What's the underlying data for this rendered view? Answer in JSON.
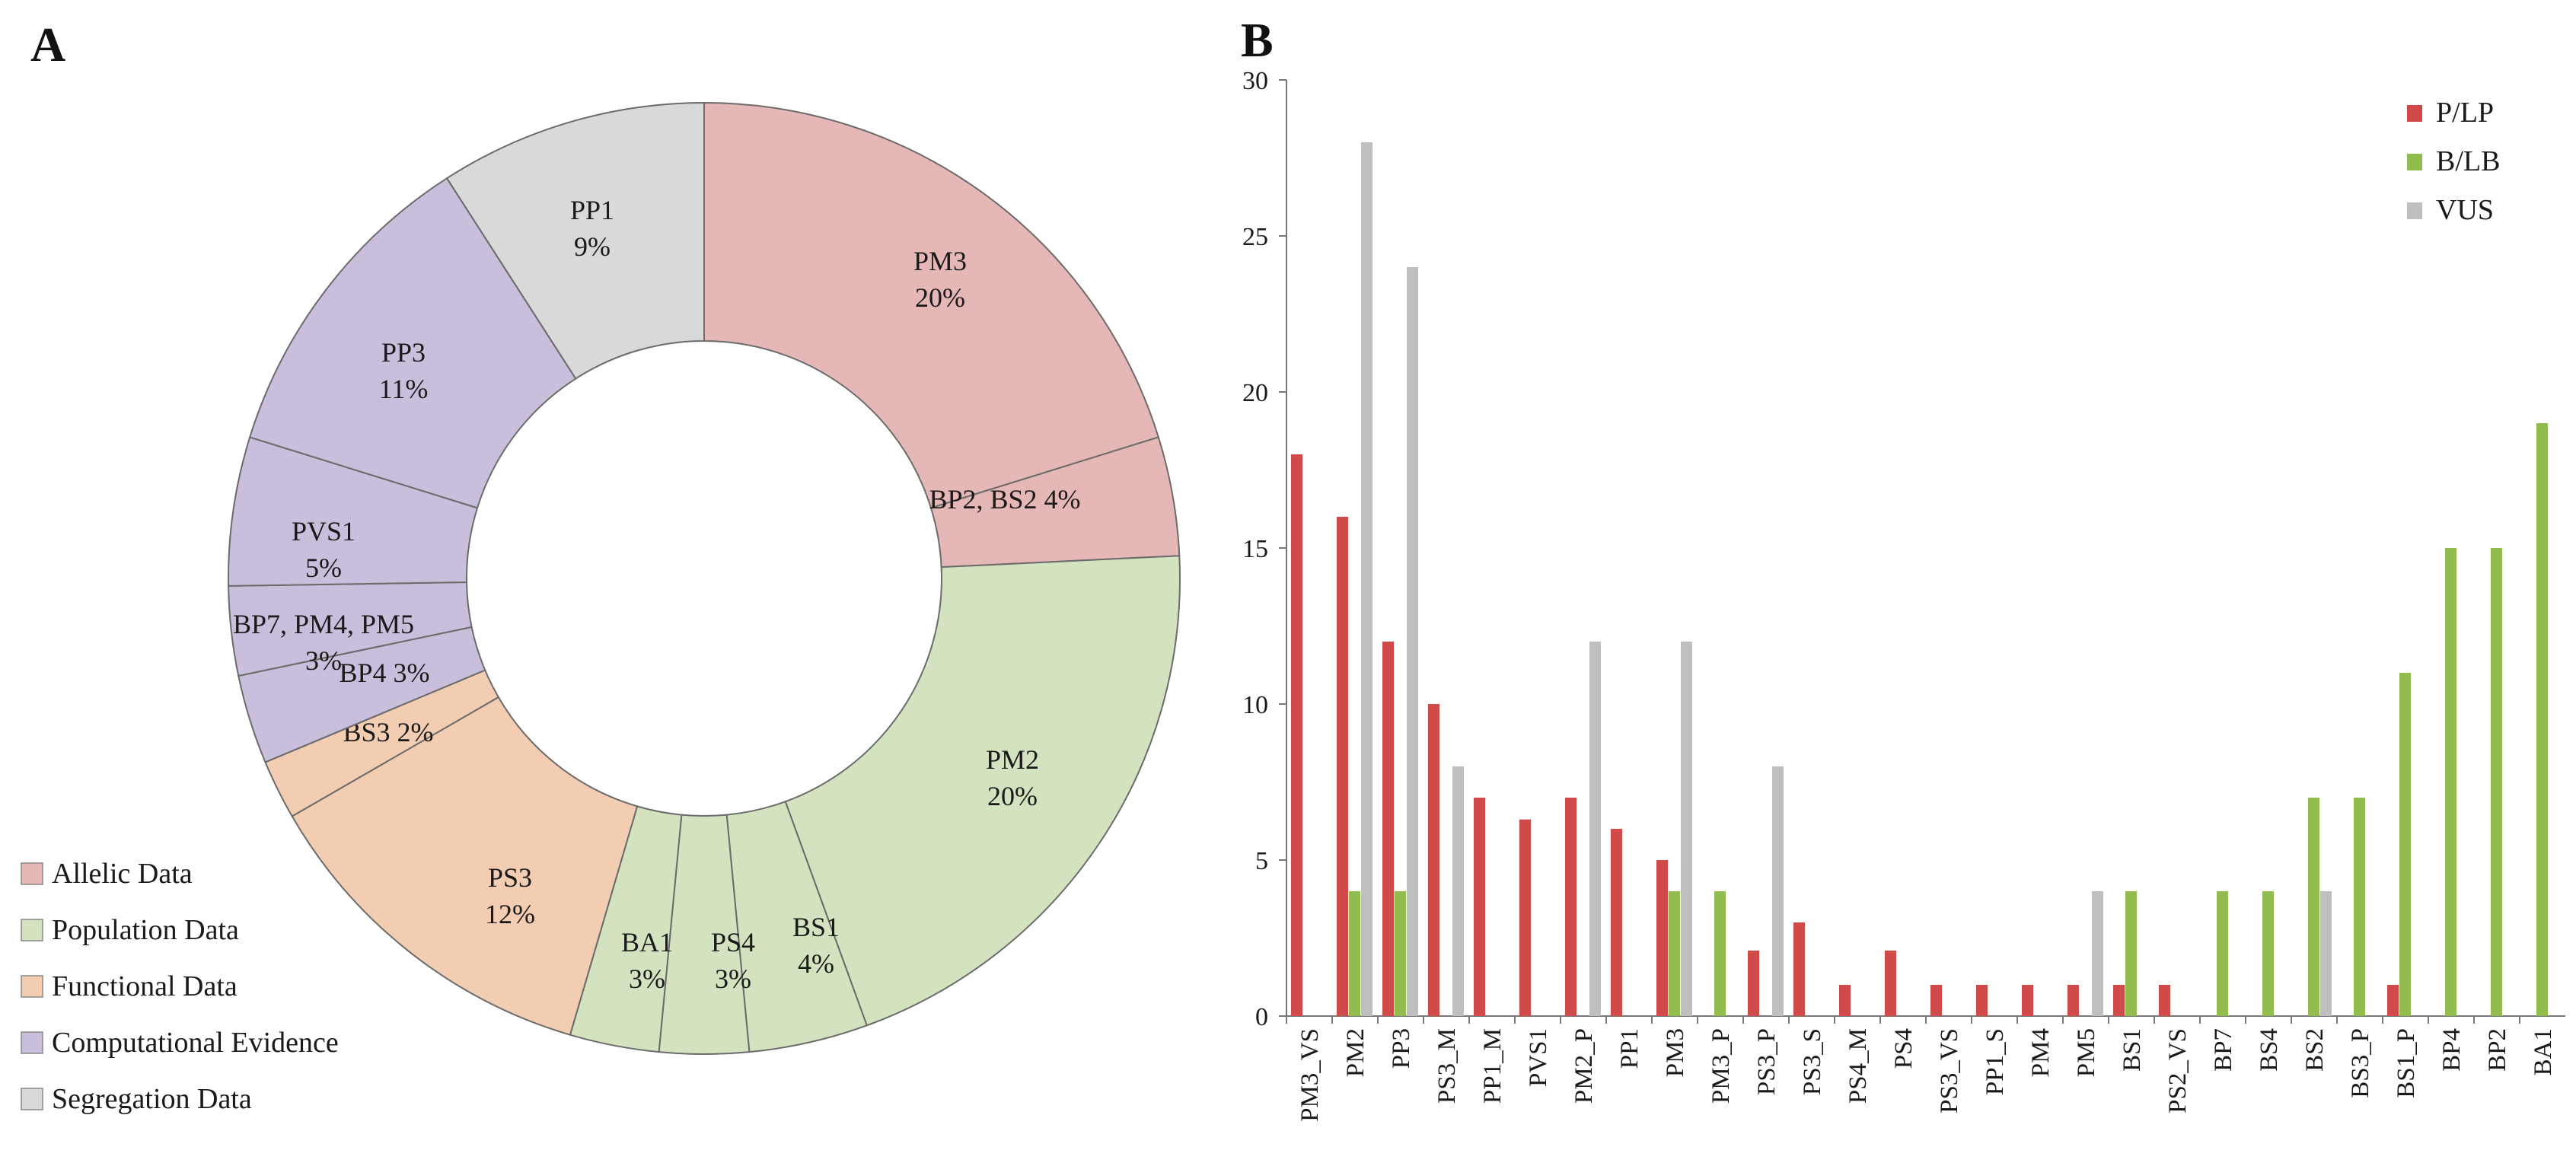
{
  "panels": {
    "a": "A",
    "b": "B"
  },
  "chart_data": [
    {
      "type": "pie",
      "variant": "donut",
      "panel": "A",
      "title": "",
      "slices": [
        {
          "label": "PM3",
          "value": 20,
          "pct": "20%",
          "category": "allelic"
        },
        {
          "label": "BP2, BS2",
          "value": 4,
          "pct": "4%",
          "category": "allelic"
        },
        {
          "label": "PM2",
          "value": 20,
          "pct": "20%",
          "category": "population"
        },
        {
          "label": "BS1",
          "value": 4,
          "pct": "4%",
          "category": "population"
        },
        {
          "label": "PS4",
          "value": 3,
          "pct": "3%",
          "category": "population"
        },
        {
          "label": "BA1",
          "value": 3,
          "pct": "3%",
          "category": "population"
        },
        {
          "label": "PS3",
          "value": 12,
          "pct": "12%",
          "category": "functional"
        },
        {
          "label": "BS3",
          "value": 2,
          "pct": "2%",
          "category": "functional"
        },
        {
          "label": "BP4",
          "value": 3,
          "pct": "3%",
          "category": "computational"
        },
        {
          "label": "BP7, PM4, PM5",
          "value": 3,
          "pct": "3%",
          "category": "computational"
        },
        {
          "label": "PVS1",
          "value": 5,
          "pct": "5%",
          "category": "computational"
        },
        {
          "label": "PP3",
          "value": 11,
          "pct": "11%",
          "category": "computational"
        },
        {
          "label": "PP1",
          "value": 9,
          "pct": "9%",
          "category": "segregation"
        }
      ],
      "categories": [
        {
          "key": "allelic",
          "name": "Allelic Data",
          "color": "#e6b7b7"
        },
        {
          "key": "population",
          "name": "Population Data",
          "color": "#d4e3bf"
        },
        {
          "key": "functional",
          "name": "Functional Data",
          "color": "#f2cdb1"
        },
        {
          "key": "computational",
          "name": "Computational Evidence",
          "color": "#c9bedc"
        },
        {
          "key": "segregation",
          "name": "Segregation Data",
          "color": "#d9d9d9"
        }
      ],
      "legend_position": "bottom-left"
    },
    {
      "type": "bar",
      "panel": "B",
      "title": "",
      "xlabel": "",
      "ylabel": "",
      "ylim": [
        0,
        30
      ],
      "yticks": [
        0,
        5,
        10,
        15,
        20,
        25,
        30
      ],
      "grid": false,
      "legend_position": "top-right",
      "categories": [
        "PM3_VS",
        "PM2",
        "PP3",
        "PS3_M",
        "PP1_M",
        "PVS1",
        "PM2_P",
        "PP1",
        "PM3",
        "PM3_P",
        "PS3_P",
        "PS3_S",
        "PS4_M",
        "PS4",
        "PS3_VS",
        "PP1_S",
        "PM4",
        "PM5",
        "BS1",
        "PS2_VS",
        "BP7",
        "BS4",
        "BS2",
        "BS3_P",
        "BS1_P",
        "BP4",
        "BP2",
        "BA1"
      ],
      "series": [
        {
          "name": "P/LP",
          "color": "#d04a4a",
          "values": [
            18,
            16,
            12,
            10,
            7,
            6.3,
            7,
            6,
            5,
            0,
            2.1,
            3,
            1,
            2.1,
            1,
            1,
            1,
            1,
            1,
            1,
            0,
            0,
            0,
            0,
            1,
            0,
            0,
            0
          ]
        },
        {
          "name": "B/LB",
          "color": "#92bd4e",
          "values": [
            0,
            4,
            4,
            0,
            0,
            0,
            0,
            0,
            4,
            4,
            0,
            0,
            0,
            0,
            0,
            0,
            0,
            0,
            4,
            0,
            4,
            4,
            7,
            7,
            11,
            15,
            15,
            19
          ]
        },
        {
          "name": "VUS",
          "color": "#bfbfbf",
          "values": [
            0,
            28,
            24,
            8,
            0,
            0,
            12,
            0,
            12,
            0,
            8,
            0,
            0,
            0,
            0,
            0,
            0,
            4,
            0,
            0,
            0,
            0,
            4,
            0,
            0,
            0,
            0,
            0
          ]
        }
      ]
    }
  ]
}
